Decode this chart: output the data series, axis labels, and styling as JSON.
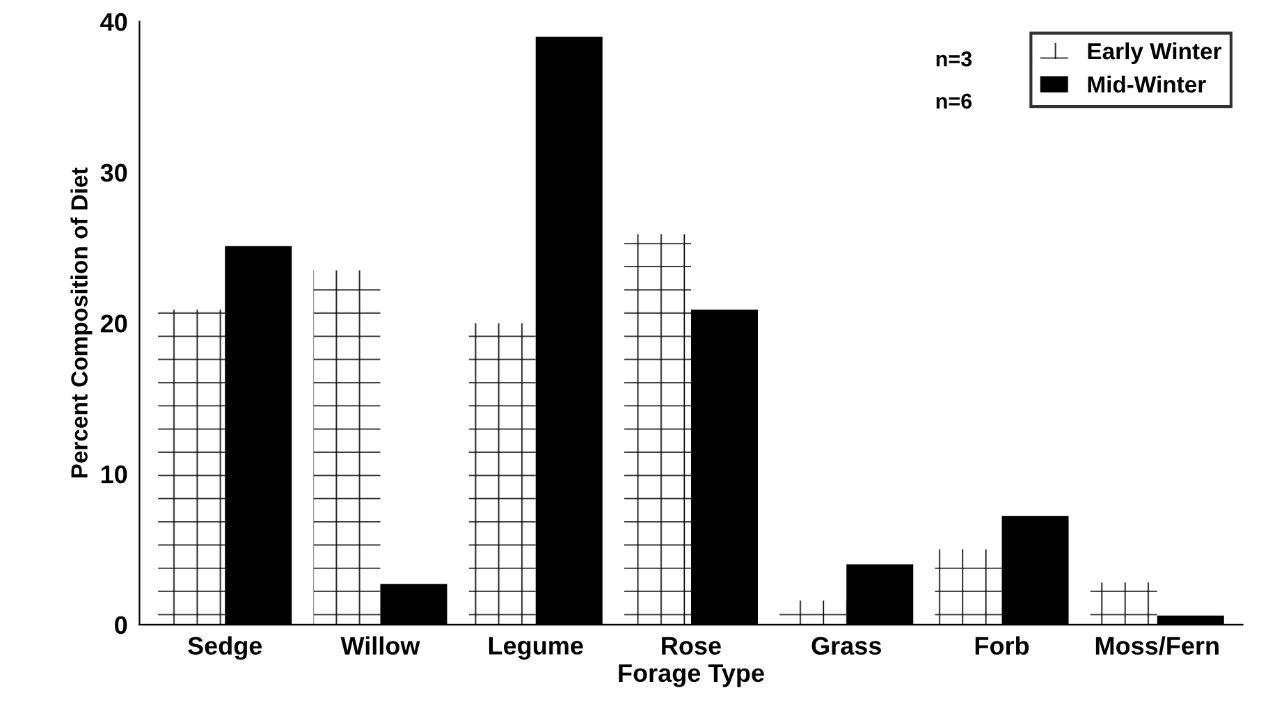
{
  "chart_data": {
    "type": "bar",
    "xlabel": "Forage Type",
    "ylabel": "Percent Composition of Diet",
    "categories": [
      "Sedge",
      "Willow",
      "Legume",
      "Rose",
      "Grass",
      "Forb",
      "Moss/Fern"
    ],
    "series": [
      {
        "name": "Early Winter",
        "color": "#ffffff",
        "values": [
          20.9,
          23.5,
          20.0,
          25.9,
          1.6,
          5.0,
          2.8
        ]
      },
      {
        "name": "Mid-Winter",
        "color": "#000000",
        "values": [
          25.1,
          2.7,
          39.0,
          20.9,
          4.0,
          7.2,
          0.6
        ]
      }
    ],
    "annotations": [
      "n=3",
      "n=6"
    ],
    "ylim": [
      0,
      40
    ],
    "yticks": [
      0,
      10,
      20,
      30,
      40
    ],
    "grid": false,
    "legend": "top right"
  }
}
